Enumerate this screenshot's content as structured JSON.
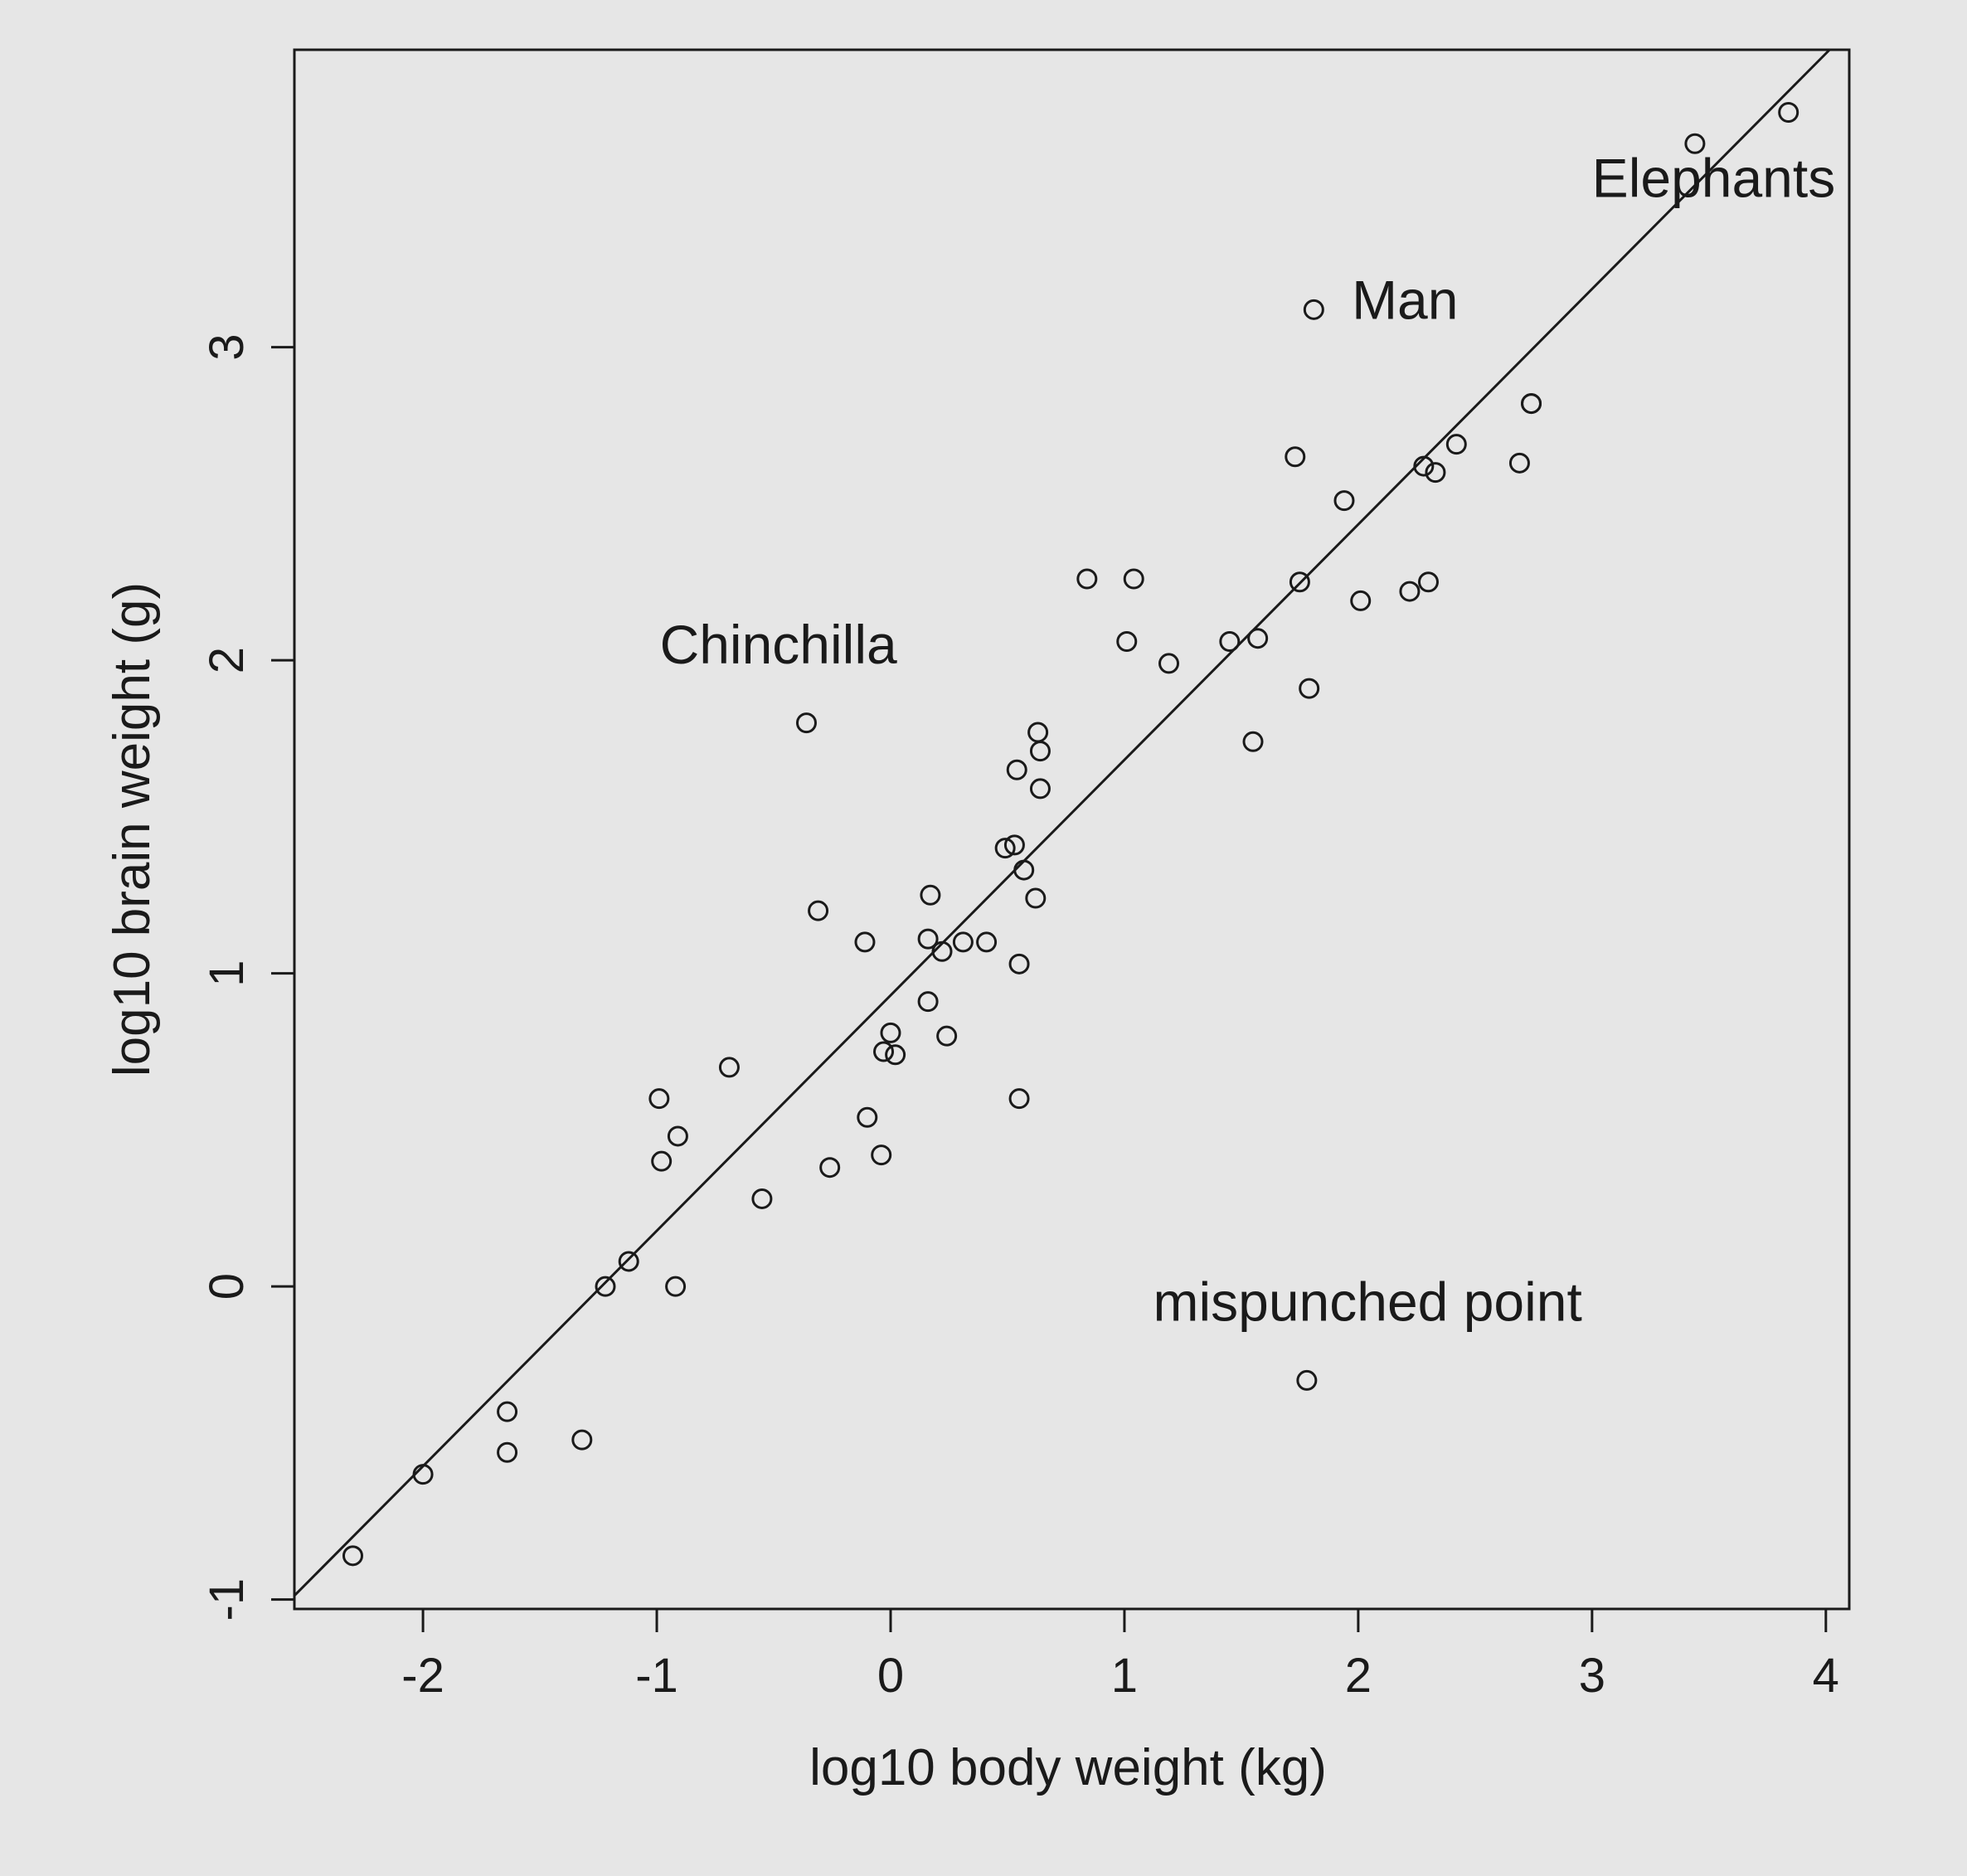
{
  "chart_data": {
    "type": "scatter",
    "title": "",
    "xlabel": "log10 body weight (kg)",
    "ylabel": "log10 brain weight (g)",
    "xlim": [
      -2.55,
      4.1
    ],
    "ylim": [
      -1.03,
      3.95
    ],
    "xticks": [
      -2,
      -1,
      0,
      1,
      2,
      3,
      4
    ],
    "yticks": [
      -1,
      0,
      1,
      2,
      3
    ],
    "grid": false,
    "fit_line": {
      "slope": 0.752,
      "intercept": 0.93
    },
    "points": [
      {
        "x": -2.3,
        "y": -0.86
      },
      {
        "x": -2.0,
        "y": -0.6
      },
      {
        "x": -1.64,
        "y": -0.4
      },
      {
        "x": -1.64,
        "y": -0.53
      },
      {
        "x": -1.32,
        "y": -0.49
      },
      {
        "x": -1.12,
        "y": 0.08
      },
      {
        "x": -1.22,
        "y": 0.0
      },
      {
        "x": -0.92,
        "y": 0.0
      },
      {
        "x": -0.99,
        "y": 0.6
      },
      {
        "x": -0.98,
        "y": 0.4
      },
      {
        "x": -0.91,
        "y": 0.48
      },
      {
        "x": -0.69,
        "y": 0.7
      },
      {
        "x": -0.55,
        "y": 0.28
      },
      {
        "x": -0.36,
        "y": 1.8
      },
      {
        "x": -0.31,
        "y": 1.2
      },
      {
        "x": -0.26,
        "y": 0.38
      },
      {
        "x": -0.11,
        "y": 1.1
      },
      {
        "x": -0.1,
        "y": 0.54
      },
      {
        "x": -0.04,
        "y": 0.42
      },
      {
        "x": -0.03,
        "y": 0.75
      },
      {
        "x": 0.0,
        "y": 0.81
      },
      {
        "x": 0.02,
        "y": 0.74
      },
      {
        "x": 0.16,
        "y": 0.91
      },
      {
        "x": 0.16,
        "y": 1.11
      },
      {
        "x": 0.17,
        "y": 1.25
      },
      {
        "x": 0.22,
        "y": 1.07
      },
      {
        "x": 0.24,
        "y": 0.8
      },
      {
        "x": 0.31,
        "y": 1.1
      },
      {
        "x": 0.41,
        "y": 1.1
      },
      {
        "x": 0.49,
        "y": 1.4
      },
      {
        "x": 0.53,
        "y": 1.41
      },
      {
        "x": 0.54,
        "y": 1.65
      },
      {
        "x": 0.55,
        "y": 1.03
      },
      {
        "x": 0.55,
        "y": 0.6
      },
      {
        "x": 0.57,
        "y": 1.33
      },
      {
        "x": 0.62,
        "y": 1.24
      },
      {
        "x": 0.63,
        "y": 1.77
      },
      {
        "x": 0.64,
        "y": 1.71
      },
      {
        "x": 0.64,
        "y": 1.59
      },
      {
        "x": 0.84,
        "y": 2.26
      },
      {
        "x": 1.01,
        "y": 2.06
      },
      {
        "x": 1.04,
        "y": 2.26
      },
      {
        "x": 1.19,
        "y": 1.99
      },
      {
        "x": 1.45,
        "y": 2.06
      },
      {
        "x": 1.55,
        "y": 1.74
      },
      {
        "x": 1.57,
        "y": 2.07
      },
      {
        "x": 1.73,
        "y": 2.65
      },
      {
        "x": 1.75,
        "y": 2.25
      },
      {
        "x": 1.78,
        "y": -0.3
      },
      {
        "x": 1.79,
        "y": 1.91
      },
      {
        "x": 1.81,
        "y": 3.12
      },
      {
        "x": 1.94,
        "y": 2.51
      },
      {
        "x": 2.01,
        "y": 2.19
      },
      {
        "x": 2.22,
        "y": 2.22
      },
      {
        "x": 2.28,
        "y": 2.62
      },
      {
        "x": 2.3,
        "y": 2.25
      },
      {
        "x": 2.33,
        "y": 2.6
      },
      {
        "x": 2.42,
        "y": 2.69
      },
      {
        "x": 2.69,
        "y": 2.63
      },
      {
        "x": 2.74,
        "y": 2.82
      },
      {
        "x": 2.74,
        "y": 2.82
      },
      {
        "x": 3.44,
        "y": 3.65
      },
      {
        "x": 3.84,
        "y": 3.75
      }
    ],
    "annotations": [
      {
        "text": "Elephants",
        "x": 3.52,
        "y": 3.48
      },
      {
        "text": "Man",
        "x": 2.2,
        "y": 3.09
      },
      {
        "text": "Chinchilla",
        "x": -0.48,
        "y": 1.99
      },
      {
        "text": "mispunched point",
        "x": 2.04,
        "y": -0.11
      }
    ]
  }
}
